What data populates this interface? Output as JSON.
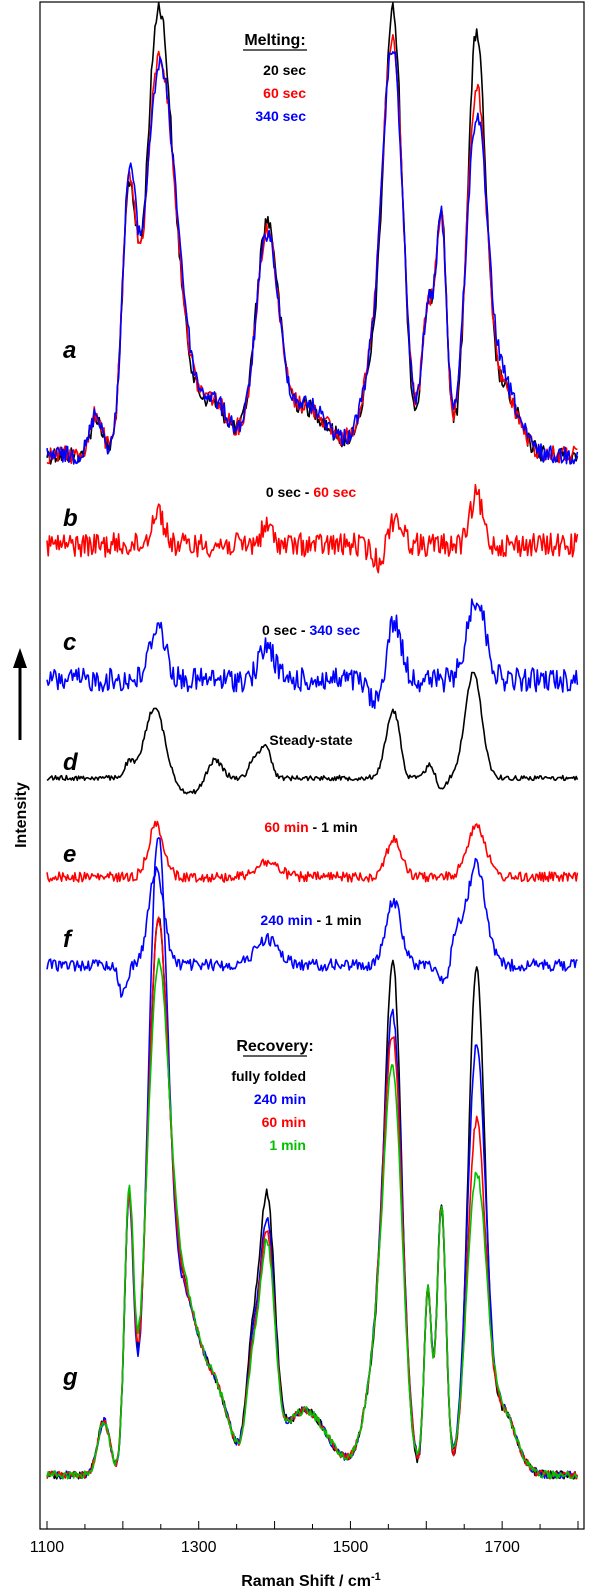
{
  "chart_data": {
    "type": "line",
    "xlabel": "Raman Shift / cm",
    "xlabel_sup": "-1",
    "ylabel": "Intensity",
    "xlim": [
      1100,
      1800
    ],
    "x_ticks": [
      1100,
      1300,
      1500,
      1700
    ],
    "colors": {
      "black": "#000000",
      "red": "#ff0000",
      "blue": "#0000ff",
      "green": "#00c000"
    },
    "panels": [
      {
        "letter": "a",
        "legend_title": "Melting:",
        "legend": [
          {
            "label": "20 sec",
            "color": "#000000"
          },
          {
            "label": "60 sec",
            "color": "#ff0000"
          },
          {
            "label": "340 sec",
            "color": "#0000ff"
          }
        ],
        "series": [
          {
            "color": "#000000",
            "baseline": 0.0,
            "peaks": [
              [
                1165,
                0.2,
                8
              ],
              [
                1208,
                1.3,
                9
              ],
              [
                1246,
                2.22,
                16
              ],
              [
                1272,
                0.55,
                15
              ],
              [
                1315,
                0.28,
                25
              ],
              [
                1390,
                1.17,
                15
              ],
              [
                1440,
                0.25,
                30
              ],
              [
                1540,
                0.55,
                20
              ],
              [
                1557,
                1.95,
                12
              ],
              [
                1602,
                0.75,
                8
              ],
              [
                1620,
                1.25,
                7
              ],
              [
                1666,
                2.15,
                12
              ],
              [
                1700,
                0.35,
                20
              ]
            ]
          },
          {
            "color": "#ff0000",
            "baseline": 0.0,
            "peaks": [
              [
                1165,
                0.22,
                8
              ],
              [
                1208,
                1.3,
                9
              ],
              [
                1246,
                1.95,
                17
              ],
              [
                1272,
                0.55,
                15
              ],
              [
                1315,
                0.3,
                25
              ],
              [
                1390,
                1.12,
                15
              ],
              [
                1440,
                0.26,
                30
              ],
              [
                1540,
                0.6,
                20
              ],
              [
                1557,
                1.75,
                13
              ],
              [
                1602,
                0.75,
                8
              ],
              [
                1620,
                1.2,
                7
              ],
              [
                1666,
                1.85,
                13
              ],
              [
                1700,
                0.35,
                20
              ]
            ]
          },
          {
            "color": "#0000ff",
            "baseline": 0.0,
            "peaks": [
              [
                1165,
                0.22,
                8
              ],
              [
                1208,
                1.3,
                9
              ],
              [
                1246,
                1.9,
                18
              ],
              [
                1272,
                0.55,
                15
              ],
              [
                1315,
                0.3,
                25
              ],
              [
                1390,
                1.1,
                15
              ],
              [
                1440,
                0.27,
                30
              ],
              [
                1540,
                0.6,
                20
              ],
              [
                1557,
                1.72,
                13
              ],
              [
                1602,
                0.75,
                8
              ],
              [
                1620,
                1.2,
                7
              ],
              [
                1666,
                1.7,
                14
              ],
              [
                1700,
                0.38,
                20
              ]
            ]
          }
        ]
      },
      {
        "letter": "b",
        "annotation": [
          {
            "text": "0 sec - ",
            "color": "#000000"
          },
          {
            "text": "60 sec",
            "color": "#ff0000"
          }
        ],
        "series": [
          {
            "color": "#ff0000",
            "baseline": 0.0,
            "peaks": [
              [
                1246,
                0.5,
                8
              ],
              [
                1390,
                0.25,
                8
              ],
              [
                1557,
                0.45,
                10
              ],
              [
                1666,
                0.7,
                8
              ],
              [
                1540,
                -0.3,
                10
              ]
            ]
          }
        ]
      },
      {
        "letter": "c",
        "annotation": [
          {
            "text": "0 sec - ",
            "color": "#000000"
          },
          {
            "text": "340 sec",
            "color": "#0000ff"
          }
        ],
        "series": [
          {
            "color": "#0000ff",
            "baseline": 0.0,
            "peaks": [
              [
                1246,
                0.75,
                10
              ],
              [
                1390,
                0.45,
                10
              ],
              [
                1557,
                0.8,
                10
              ],
              [
                1666,
                1.1,
                12
              ],
              [
                1535,
                -0.35,
                10
              ]
            ]
          }
        ]
      },
      {
        "letter": "d",
        "annotation": [
          {
            "text": "Steady-state",
            "color": "#000000"
          }
        ],
        "series": [
          {
            "color": "#000000",
            "baseline": 0.0,
            "peaks": [
              [
                1208,
                0.2,
                6
              ],
              [
                1242,
                0.95,
                13
              ],
              [
                1290,
                -0.2,
                20
              ],
              [
                1320,
                0.3,
                10
              ],
              [
                1372,
                0.25,
                6
              ],
              [
                1388,
                0.45,
                7
              ],
              [
                1557,
                0.9,
                10
              ],
              [
                1572,
                -0.15,
                6
              ],
              [
                1605,
                0.18,
                6
              ],
              [
                1620,
                -0.15,
                6
              ],
              [
                1662,
                1.4,
                11
              ]
            ]
          }
        ]
      },
      {
        "letter": "e",
        "annotation": [
          {
            "text": "60 min",
            "color": "#ff0000"
          },
          {
            "text": " - 1 min",
            "color": "#000000"
          }
        ],
        "series": [
          {
            "color": "#ff0000",
            "baseline": 0.0,
            "peaks": [
              [
                1244,
                0.7,
                10
              ],
              [
                1390,
                0.2,
                15
              ],
              [
                1557,
                0.5,
                10
              ],
              [
                1666,
                0.7,
                12
              ]
            ]
          }
        ]
      },
      {
        "letter": "f",
        "annotation": [
          {
            "text": "240 min",
            "color": "#0000ff"
          },
          {
            "text": " - 1 min",
            "color": "#000000"
          }
        ],
        "series": [
          {
            "color": "#0000ff",
            "baseline": 0.0,
            "peaks": [
              [
                1200,
                -0.4,
                5
              ],
              [
                1244,
                1.25,
                10
              ],
              [
                1390,
                0.35,
                15
              ],
              [
                1557,
                0.85,
                10
              ],
              [
                1625,
                -0.3,
                6
              ],
              [
                1640,
                0.4,
                8
              ],
              [
                1666,
                1.35,
                12
              ]
            ]
          }
        ]
      },
      {
        "letter": "g",
        "legend_title": "Recovery:",
        "legend": [
          {
            "label": "fully folded",
            "color": "#000000"
          },
          {
            "label": "240 min",
            "color": "#0000ff"
          },
          {
            "label": "60 min",
            "color": "#ff0000"
          },
          {
            "label": "1 min",
            "color": "#00c000"
          }
        ],
        "series": [
          {
            "color": "#000000",
            "baseline": 0.0,
            "peaks": [
              [
                1175,
                0.25,
                8
              ],
              [
                1208,
                1.25,
                6
              ],
              [
                1246,
                2.45,
                14
              ],
              [
                1280,
                0.75,
                18
              ],
              [
                1320,
                0.4,
                20
              ],
              [
                1370,
                0.5,
                8
              ],
              [
                1390,
                1.22,
                10
              ],
              [
                1440,
                0.3,
                30
              ],
              [
                1540,
                0.6,
                18
              ],
              [
                1557,
                2.0,
                11
              ],
              [
                1602,
                0.85,
                5
              ],
              [
                1620,
                1.25,
                6
              ],
              [
                1666,
                2.32,
                11
              ],
              [
                1700,
                0.3,
                18
              ]
            ]
          },
          {
            "color": "#0000ff",
            "baseline": 0.0,
            "peaks": [
              [
                1175,
                0.25,
                8
              ],
              [
                1208,
                1.25,
                6
              ],
              [
                1246,
                2.85,
                13
              ],
              [
                1280,
                0.75,
                18
              ],
              [
                1320,
                0.4,
                20
              ],
              [
                1370,
                0.45,
                8
              ],
              [
                1390,
                1.1,
                10
              ],
              [
                1440,
                0.3,
                30
              ],
              [
                1540,
                0.6,
                18
              ],
              [
                1557,
                1.75,
                12
              ],
              [
                1602,
                0.85,
                5
              ],
              [
                1620,
                1.25,
                6
              ],
              [
                1666,
                1.95,
                12
              ],
              [
                1700,
                0.3,
                18
              ]
            ]
          },
          {
            "color": "#ff0000",
            "baseline": 0.0,
            "peaks": [
              [
                1175,
                0.25,
                8
              ],
              [
                1208,
                1.25,
                6
              ],
              [
                1246,
                2.45,
                14
              ],
              [
                1280,
                0.75,
                18
              ],
              [
                1320,
                0.4,
                20
              ],
              [
                1370,
                0.42,
                8
              ],
              [
                1390,
                1.05,
                10
              ],
              [
                1440,
                0.3,
                30
              ],
              [
                1540,
                0.6,
                18
              ],
              [
                1557,
                1.65,
                12
              ],
              [
                1602,
                0.85,
                5
              ],
              [
                1620,
                1.25,
                6
              ],
              [
                1666,
                1.6,
                12
              ],
              [
                1700,
                0.3,
                18
              ]
            ]
          },
          {
            "color": "#00c000",
            "baseline": 0.0,
            "peaks": [
              [
                1175,
                0.25,
                8
              ],
              [
                1208,
                1.25,
                6
              ],
              [
                1246,
                2.25,
                15
              ],
              [
                1280,
                0.75,
                18
              ],
              [
                1320,
                0.4,
                20
              ],
              [
                1370,
                0.4,
                8
              ],
              [
                1390,
                1.0,
                10
              ],
              [
                1440,
                0.3,
                30
              ],
              [
                1540,
                0.6,
                18
              ],
              [
                1557,
                1.5,
                12
              ],
              [
                1602,
                0.85,
                5
              ],
              [
                1620,
                1.25,
                6
              ],
              [
                1666,
                1.35,
                13
              ],
              [
                1700,
                0.3,
                18
              ]
            ]
          }
        ]
      }
    ]
  }
}
